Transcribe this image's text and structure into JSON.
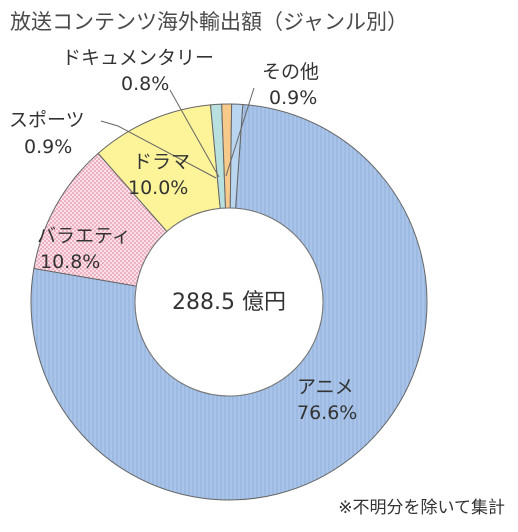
{
  "chart_data": {
    "type": "pie",
    "title": "放送コンテンツ海外輸出額（ジャンル別）",
    "center_label": "288.5 億円",
    "note": "※不明分を除いて集計",
    "slices": [
      {
        "name": "アニメ",
        "value": 76.6,
        "label": "76.6%",
        "color": "#a9c4e8",
        "pattern": "vertical-lines"
      },
      {
        "name": "バラエティ",
        "value": 10.8,
        "label": "10.8%",
        "color": "#f9cfdc",
        "pattern": "dots"
      },
      {
        "name": "ドラマ",
        "value": 10.0,
        "label": "10.0%",
        "color": "#fdf49a",
        "pattern": "none"
      },
      {
        "name": "スポーツ",
        "value": 0.9,
        "label": "0.9%",
        "color": "#b8e0de",
        "pattern": "none"
      },
      {
        "name": "ドキュメンタリー",
        "value": 0.8,
        "label": "0.8%",
        "color": "#f7c98b",
        "pattern": "none"
      },
      {
        "name": "その他",
        "value": 0.9,
        "label": "0.9%",
        "color": "#b9d5ef",
        "pattern": "none"
      }
    ]
  }
}
